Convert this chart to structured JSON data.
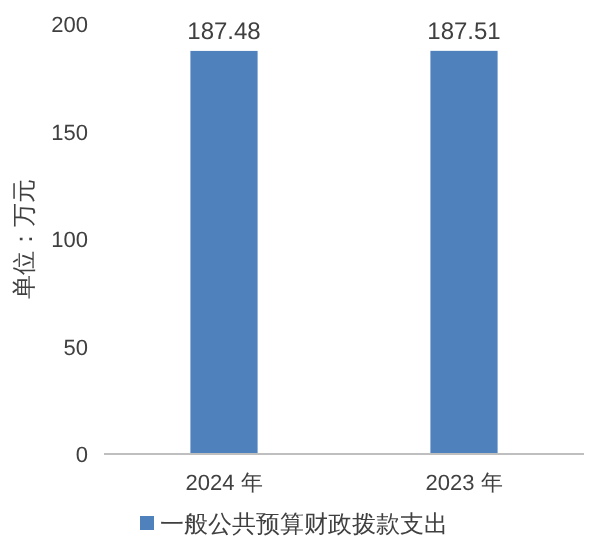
{
  "chart_data": {
    "type": "bar",
    "categories": [
      "2024 年",
      "2023 年"
    ],
    "series": [
      {
        "name": "一般公共预算财政拨款支出",
        "color": "#4f81bd",
        "values": [
          187.48,
          187.51
        ]
      }
    ],
    "ylabel": "单位：万元",
    "ylim": [
      0,
      200
    ],
    "yticks": [
      0,
      50,
      100,
      150,
      200
    ],
    "data_labels": true,
    "grid": false,
    "legend": "bottom"
  }
}
